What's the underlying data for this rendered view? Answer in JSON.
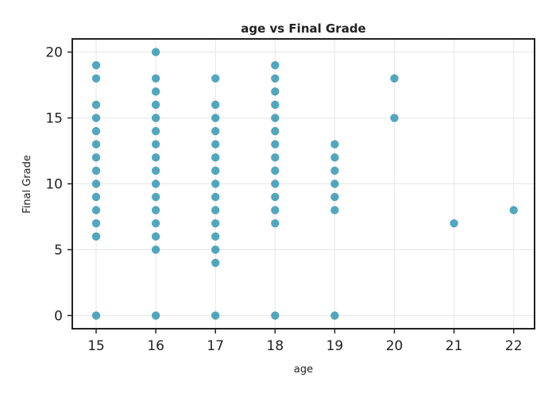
{
  "chart_data": {
    "type": "scatter",
    "title": "age vs Final Grade",
    "xlabel": "age",
    "ylabel": "Final Grade",
    "xlim": [
      14.6,
      22.35
    ],
    "ylim": [
      -1,
      21
    ],
    "xticks": [
      15,
      16,
      17,
      18,
      19,
      20,
      21,
      22
    ],
    "yticks": [
      0,
      5,
      10,
      15,
      20
    ],
    "grid": true,
    "point_color": "#1a8aa8",
    "points": [
      {
        "x": 15,
        "y": 19
      },
      {
        "x": 15,
        "y": 18
      },
      {
        "x": 15,
        "y": 16
      },
      {
        "x": 15,
        "y": 15
      },
      {
        "x": 15,
        "y": 14
      },
      {
        "x": 15,
        "y": 13
      },
      {
        "x": 15,
        "y": 12
      },
      {
        "x": 15,
        "y": 11
      },
      {
        "x": 15,
        "y": 10
      },
      {
        "x": 15,
        "y": 9
      },
      {
        "x": 15,
        "y": 8
      },
      {
        "x": 15,
        "y": 7
      },
      {
        "x": 15,
        "y": 6
      },
      {
        "x": 15,
        "y": 0
      },
      {
        "x": 16,
        "y": 20
      },
      {
        "x": 16,
        "y": 18
      },
      {
        "x": 16,
        "y": 17
      },
      {
        "x": 16,
        "y": 16
      },
      {
        "x": 16,
        "y": 15
      },
      {
        "x": 16,
        "y": 14
      },
      {
        "x": 16,
        "y": 13
      },
      {
        "x": 16,
        "y": 12
      },
      {
        "x": 16,
        "y": 11
      },
      {
        "x": 16,
        "y": 10
      },
      {
        "x": 16,
        "y": 9
      },
      {
        "x": 16,
        "y": 8
      },
      {
        "x": 16,
        "y": 7
      },
      {
        "x": 16,
        "y": 6
      },
      {
        "x": 16,
        "y": 5
      },
      {
        "x": 16,
        "y": 0
      },
      {
        "x": 17,
        "y": 18
      },
      {
        "x": 17,
        "y": 16
      },
      {
        "x": 17,
        "y": 15
      },
      {
        "x": 17,
        "y": 14
      },
      {
        "x": 17,
        "y": 13
      },
      {
        "x": 17,
        "y": 12
      },
      {
        "x": 17,
        "y": 11
      },
      {
        "x": 17,
        "y": 10
      },
      {
        "x": 17,
        "y": 9
      },
      {
        "x": 17,
        "y": 8
      },
      {
        "x": 17,
        "y": 7
      },
      {
        "x": 17,
        "y": 6
      },
      {
        "x": 17,
        "y": 5
      },
      {
        "x": 17,
        "y": 4
      },
      {
        "x": 17,
        "y": 0
      },
      {
        "x": 18,
        "y": 19
      },
      {
        "x": 18,
        "y": 18
      },
      {
        "x": 18,
        "y": 17
      },
      {
        "x": 18,
        "y": 16
      },
      {
        "x": 18,
        "y": 15
      },
      {
        "x": 18,
        "y": 14
      },
      {
        "x": 18,
        "y": 13
      },
      {
        "x": 18,
        "y": 12
      },
      {
        "x": 18,
        "y": 11
      },
      {
        "x": 18,
        "y": 10
      },
      {
        "x": 18,
        "y": 9
      },
      {
        "x": 18,
        "y": 8
      },
      {
        "x": 18,
        "y": 7
      },
      {
        "x": 18,
        "y": 0
      },
      {
        "x": 19,
        "y": 13
      },
      {
        "x": 19,
        "y": 12
      },
      {
        "x": 19,
        "y": 11
      },
      {
        "x": 19,
        "y": 10
      },
      {
        "x": 19,
        "y": 9
      },
      {
        "x": 19,
        "y": 8
      },
      {
        "x": 19,
        "y": 0
      },
      {
        "x": 20,
        "y": 18
      },
      {
        "x": 20,
        "y": 15
      },
      {
        "x": 21,
        "y": 7
      },
      {
        "x": 22,
        "y": 8
      }
    ]
  }
}
